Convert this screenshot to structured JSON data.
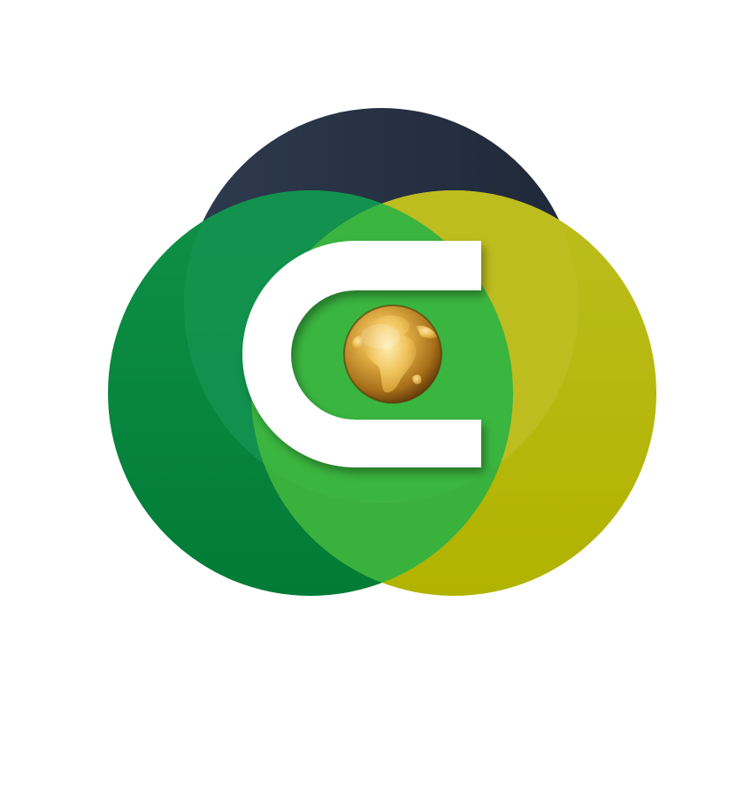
{
  "logo": {
    "letter": "C",
    "colors": {
      "background": "#ffffff",
      "navy_circle": "#2b3649",
      "navy_circle_light": "#2f3d52",
      "dark_green_circle": "#0b8a3c",
      "dark_green_edge": "#017c37",
      "olive_circle": "#b5b80d",
      "olive_circle_light": "#c0c02a",
      "light_green_overlap": "#3ab33e",
      "teal_overlap": "#129a50",
      "letter": "#ffffff",
      "globe_gold": "#d8a53a",
      "globe_shadow": "#7a4a0c",
      "globe_highlight": "#ffe59a"
    },
    "icons": {
      "globe": "globe-icon",
      "letter_mark": "letter-c-mark"
    }
  }
}
